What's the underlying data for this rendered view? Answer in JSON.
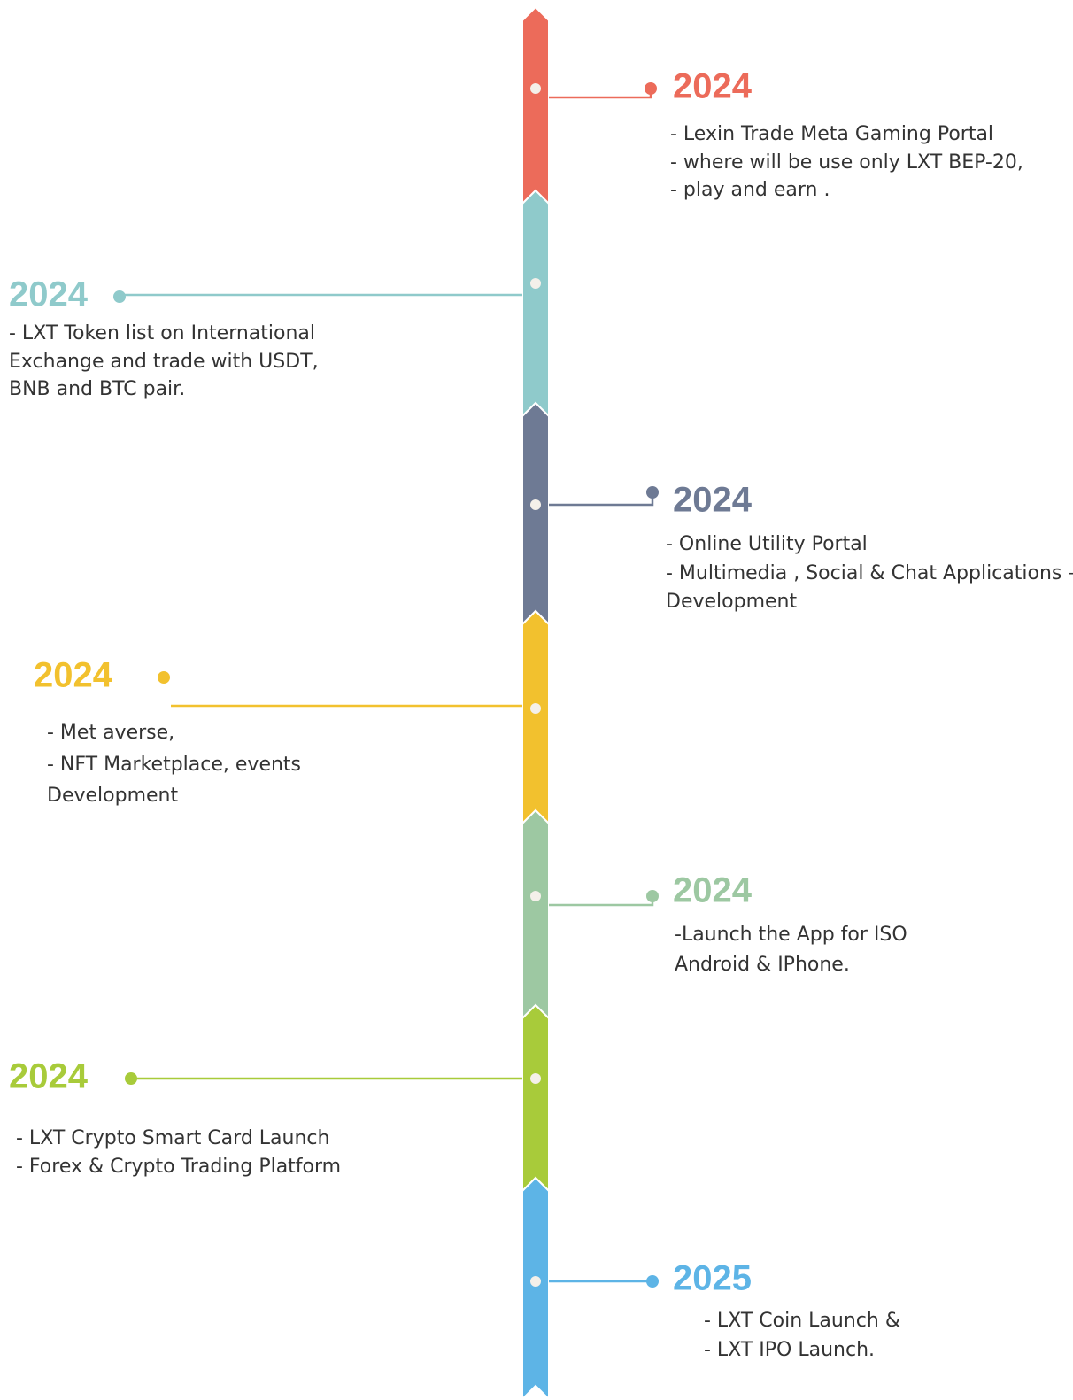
{
  "milestones": [
    {
      "year": "2024",
      "color": "#ec6b5a",
      "lines": [
        "- Lexin Trade Meta Gaming Portal",
        "- where will be use only LXT BEP-20,",
        "- play and earn ."
      ]
    },
    {
      "year": "2024",
      "color": "#8fcacb",
      "lines": [
        "-  LXT Token list on International",
        "   Exchange and trade with USDT,",
        "   BNB and BTC pair."
      ]
    },
    {
      "year": "2024",
      "color": "#6e7a94",
      "lines": [
        "- Online Utility Portal",
        "- Multimedia , Social & Chat Applications –",
        "  Development"
      ]
    },
    {
      "year": "2024",
      "color": "#f2c12e",
      "lines": [
        "- Met averse,",
        "- NFT Marketplace, events",
        "Development"
      ]
    },
    {
      "year": "2024",
      "color": "#9dc8a2",
      "lines": [
        "-Launch the App for ISO",
        "Android & IPhone."
      ]
    },
    {
      "year": "2024",
      "color": "#a8cb3a",
      "lines": [
        "- LXT Crypto Smart Card Launch",
        "- Forex & Crypto Trading Platform"
      ]
    },
    {
      "year": "2025",
      "color": "#5db4e6",
      "lines": [
        "- LXT Coin Launch &",
        "- LXT IPO Launch."
      ]
    }
  ]
}
